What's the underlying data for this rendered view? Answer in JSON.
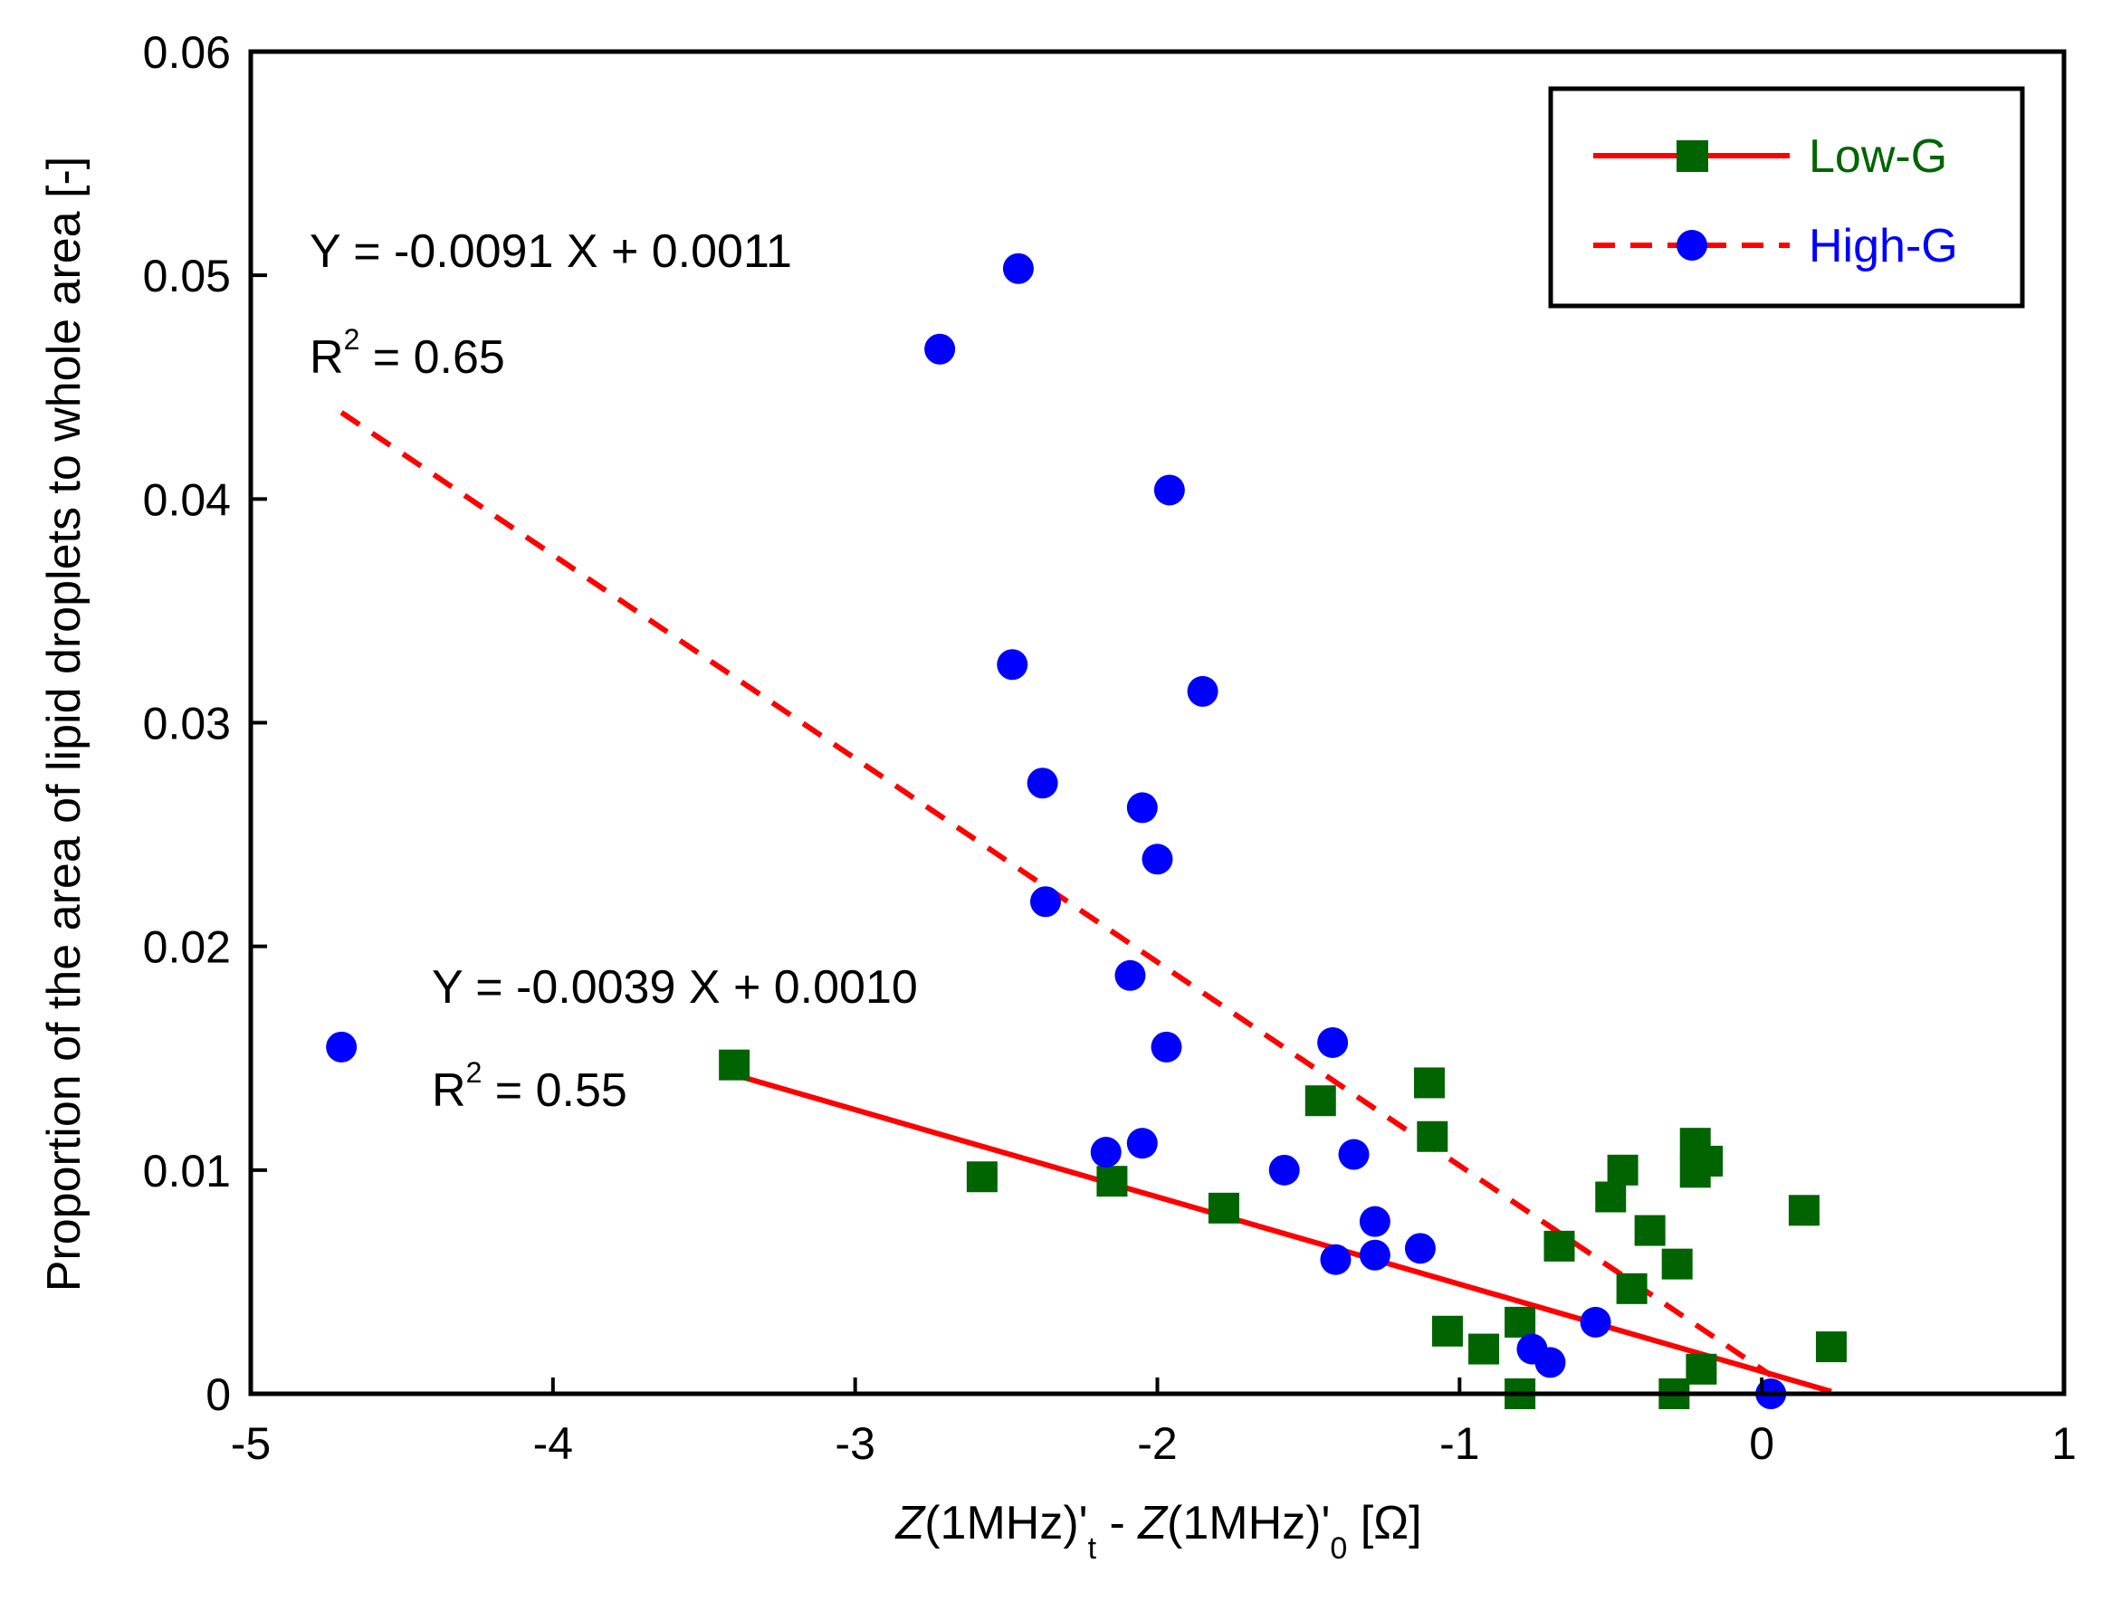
{
  "chart_data": {
    "type": "scatter",
    "xlabel": {
      "z1": "Z",
      "mid1": "(1MHz)'",
      "sub1": "t",
      "dash": " - ",
      "z2": "Z",
      "mid2": "(1MHz)'",
      "sub2": "0",
      "unit": " [Ω]"
    },
    "ylabel": "Proportion of the area of lipid droplets to whole area [-]",
    "xlim": [
      -5,
      1
    ],
    "ylim": [
      0,
      0.06
    ],
    "xticks": [
      -5,
      -4,
      -3,
      -2,
      -1,
      0,
      1
    ],
    "yticks": [
      0,
      0.01,
      0.02,
      0.03,
      0.04,
      0.05,
      0.06
    ],
    "ytick_labels": [
      "0",
      "0.01",
      "0.02",
      "0.03",
      "0.04",
      "0.05",
      "0.06"
    ],
    "xtick_labels": [
      "-5",
      "-4",
      "-3",
      "-2",
      "-1",
      "0",
      "1"
    ],
    "grid": false,
    "legend_position": "top-right",
    "series": [
      {
        "name": "Low-G",
        "marker": "square",
        "marker_color": "#006400",
        "label_color": "#006400",
        "line_color": "#ff0000",
        "line_style": "solid",
        "points": [
          [
            -3.4,
            0.0147
          ],
          [
            -2.58,
            0.0097
          ],
          [
            -2.15,
            0.0095
          ],
          [
            -1.78,
            0.0083
          ],
          [
            -1.46,
            0.0131
          ],
          [
            -1.1,
            0.0139
          ],
          [
            -1.09,
            0.0115
          ],
          [
            -1.04,
            0.0028
          ],
          [
            -0.92,
            0.002
          ],
          [
            -0.8,
            0.0032
          ],
          [
            -0.8,
            0.0
          ],
          [
            -0.67,
            0.0066
          ],
          [
            -0.5,
            0.0088
          ],
          [
            -0.46,
            0.01
          ],
          [
            -0.43,
            0.0047
          ],
          [
            -0.37,
            0.0073
          ],
          [
            -0.28,
            0.0058
          ],
          [
            -0.29,
            0.0
          ],
          [
            -0.22,
            0.0112
          ],
          [
            -0.22,
            0.0099
          ],
          [
            -0.2,
            0.0011
          ],
          [
            -0.18,
            0.0104
          ],
          [
            0.14,
            0.0082
          ],
          [
            0.23,
            0.0021
          ]
        ],
        "fit": {
          "x": [
            -3.4,
            0.23
          ],
          "equation": "Y = -0.0039 X + 0.0010",
          "r2_label": "R",
          "r2_sup": "2",
          "r2_value": " = 0.55"
        }
      },
      {
        "name": "High-G",
        "marker": "circle",
        "marker_color": "#0000ff",
        "label_color": "#0000ff",
        "line_color": "#ff0000",
        "line_style": "dashed",
        "points": [
          [
            -4.7,
            0.0155
          ],
          [
            -2.72,
            0.0467
          ],
          [
            -2.46,
            0.0503
          ],
          [
            -2.48,
            0.0326
          ],
          [
            -2.38,
            0.0273
          ],
          [
            -2.37,
            0.022
          ],
          [
            -2.09,
            0.0187
          ],
          [
            -2.17,
            0.0108
          ],
          [
            -2.05,
            0.0262
          ],
          [
            -2.05,
            0.0112
          ],
          [
            -2.0,
            0.0239
          ],
          [
            -1.96,
            0.0404
          ],
          [
            -1.97,
            0.0155
          ],
          [
            -1.85,
            0.0314
          ],
          [
            -1.58,
            0.01
          ],
          [
            -1.42,
            0.0157
          ],
          [
            -1.41,
            0.006
          ],
          [
            -1.35,
            0.0107
          ],
          [
            -1.28,
            0.0077
          ],
          [
            -1.28,
            0.0062
          ],
          [
            -1.13,
            0.0065
          ],
          [
            -0.76,
            0.002
          ],
          [
            -0.7,
            0.0014
          ],
          [
            -0.55,
            0.0032
          ],
          [
            0.03,
            0.0
          ]
        ],
        "fit": {
          "x": [
            -4.7,
            0.03
          ],
          "equation": "Y = -0.0091 X + 0.0011",
          "r2_label": "R",
          "r2_sup": "2",
          "r2_value": " = 0.65"
        }
      }
    ]
  }
}
